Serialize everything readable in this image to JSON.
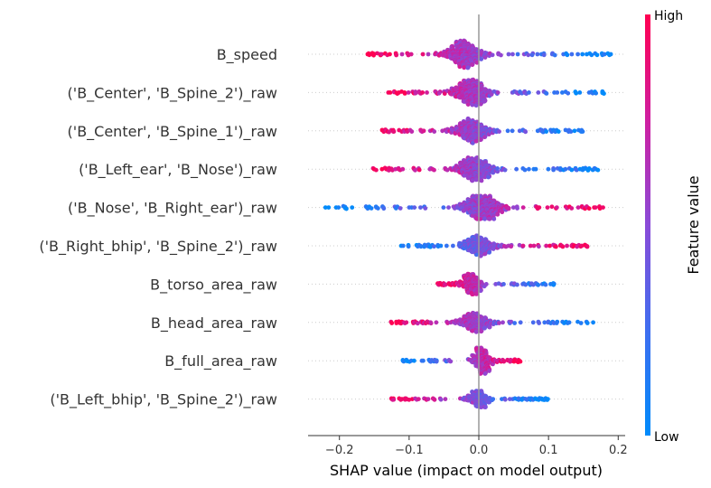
{
  "chart_data": {
    "type": "scatter",
    "subtype": "shap-beeswarm",
    "xlabel": "SHAP value (impact on model output)",
    "xlim": [
      -0.245,
      0.21
    ],
    "xticks": [
      -0.2,
      -0.1,
      0.0,
      0.1,
      0.2
    ],
    "xtick_labels": [
      "−0.2",
      "−0.1",
      "0.0",
      "0.1",
      "0.2"
    ],
    "zero_line": true,
    "grid": false,
    "colorbar": {
      "label": "Feature value",
      "high_label": "High",
      "low_label": "Low",
      "low_color": "#008bfb",
      "high_color": "#ff0052"
    },
    "features": [
      {
        "name": "B_speed",
        "min": -0.16,
        "max": 0.195,
        "center": -0.02,
        "width": 0.11,
        "corr": -1,
        "peak": 1.0
      },
      {
        "name": "('B_Center', 'B_Spine_2')_raw",
        "min": -0.135,
        "max": 0.185,
        "center": -0.01,
        "width": 0.1,
        "corr": -1,
        "peak": 0.95
      },
      {
        "name": "('B_Center', 'B_Spine_1')_raw",
        "min": -0.14,
        "max": 0.15,
        "center": -0.01,
        "width": 0.1,
        "corr": -1,
        "peak": 0.9
      },
      {
        "name": "('B_Left_ear', 'B_Nose')_raw",
        "min": -0.155,
        "max": 0.175,
        "center": -0.005,
        "width": 0.11,
        "corr": -1,
        "peak": 0.85
      },
      {
        "name": "('B_Nose', 'B_Right_ear')_raw",
        "min": -0.225,
        "max": 0.18,
        "center": 0.005,
        "width": 0.12,
        "corr": 1,
        "peak": 0.85
      },
      {
        "name": "('B_Right_bhip', 'B_Spine_2')_raw",
        "min": -0.12,
        "max": 0.16,
        "center": 0.0,
        "width": 0.1,
        "corr": 1,
        "peak": 0.75
      },
      {
        "name": "B_torso_area_raw",
        "min": -0.06,
        "max": 0.11,
        "center": -0.01,
        "width": 0.06,
        "corr": -1,
        "peak": 0.75
      },
      {
        "name": "B_head_area_raw",
        "min": -0.13,
        "max": 0.165,
        "center": -0.005,
        "width": 0.09,
        "corr": -1,
        "peak": 0.7
      },
      {
        "name": "B_full_area_raw",
        "min": -0.11,
        "max": 0.06,
        "center": 0.005,
        "width": 0.05,
        "corr": 1,
        "peak": 0.95
      },
      {
        "name": "('B_Left_bhip', 'B_Spine_2')_raw",
        "min": -0.135,
        "max": 0.1,
        "center": 0.0,
        "width": 0.06,
        "corr": -1,
        "peak": 0.6
      }
    ]
  }
}
